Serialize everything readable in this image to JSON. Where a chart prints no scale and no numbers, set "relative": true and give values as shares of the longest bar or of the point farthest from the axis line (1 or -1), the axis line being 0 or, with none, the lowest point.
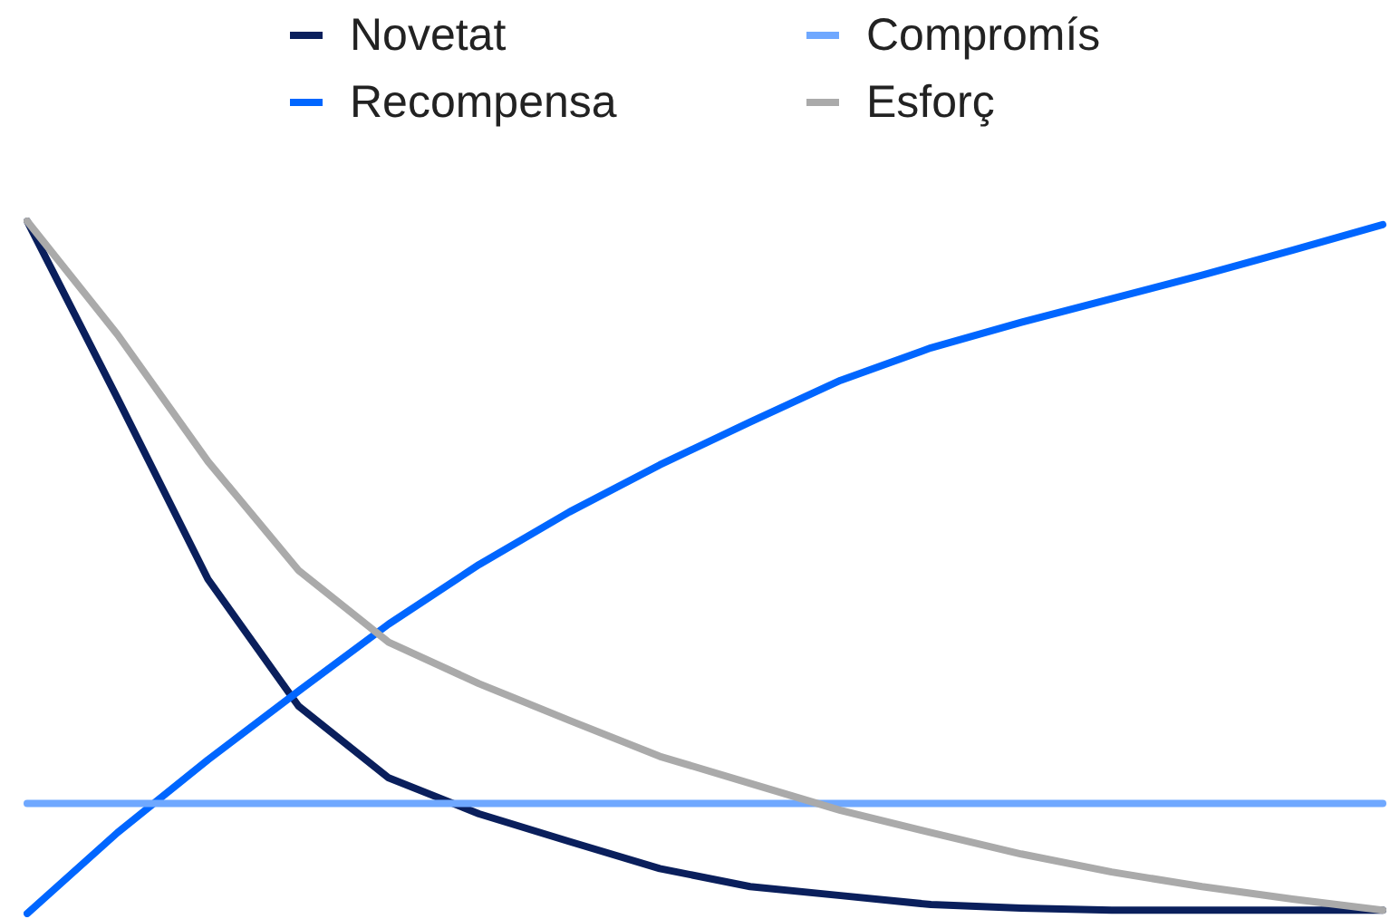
{
  "chart_data": {
    "type": "line",
    "relative": true,
    "legend": "top",
    "grid": false,
    "marker": "none",
    "line_style": "solid",
    "categories": [
      null,
      null,
      null,
      null,
      null,
      null,
      null,
      null,
      null,
      null,
      null,
      null,
      null,
      null,
      null,
      null
    ],
    "series": [
      {
        "name": "Novetat",
        "color": "#0a1f5c",
        "values": [
          1,
          0.744,
          0.483,
          0.3,
          0.196,
          0.144,
          0.104,
          0.065,
          0.039,
          0.026,
          0.013,
          0.008,
          0.005,
          0.005,
          0.005,
          0.005
        ]
      },
      {
        "name": "Recompensa",
        "color": "#0066ff",
        "values": [
          0,
          0.117,
          0.222,
          0.321,
          0.418,
          0.504,
          0.58,
          0.648,
          0.71,
          0.77,
          0.817,
          0.854,
          0.888,
          0.922,
          0.958,
          0.995
        ]
      },
      {
        "name": "Compromís",
        "color": "#6fa8ff",
        "values": [
          0.159,
          0.159,
          0.159,
          0.159,
          0.159,
          0.159,
          0.159,
          0.159,
          0.159,
          0.159,
          0.159,
          0.159,
          0.159,
          0.159,
          0.159,
          0.159
        ]
      },
      {
        "name": "Esforç",
        "color": "#aaaaaa",
        "values": [
          1,
          0.836,
          0.653,
          0.496,
          0.392,
          0.332,
          0.279,
          0.227,
          0.188,
          0.149,
          0.117,
          0.086,
          0.06,
          0.039,
          0.021,
          0.005
        ]
      }
    ]
  }
}
